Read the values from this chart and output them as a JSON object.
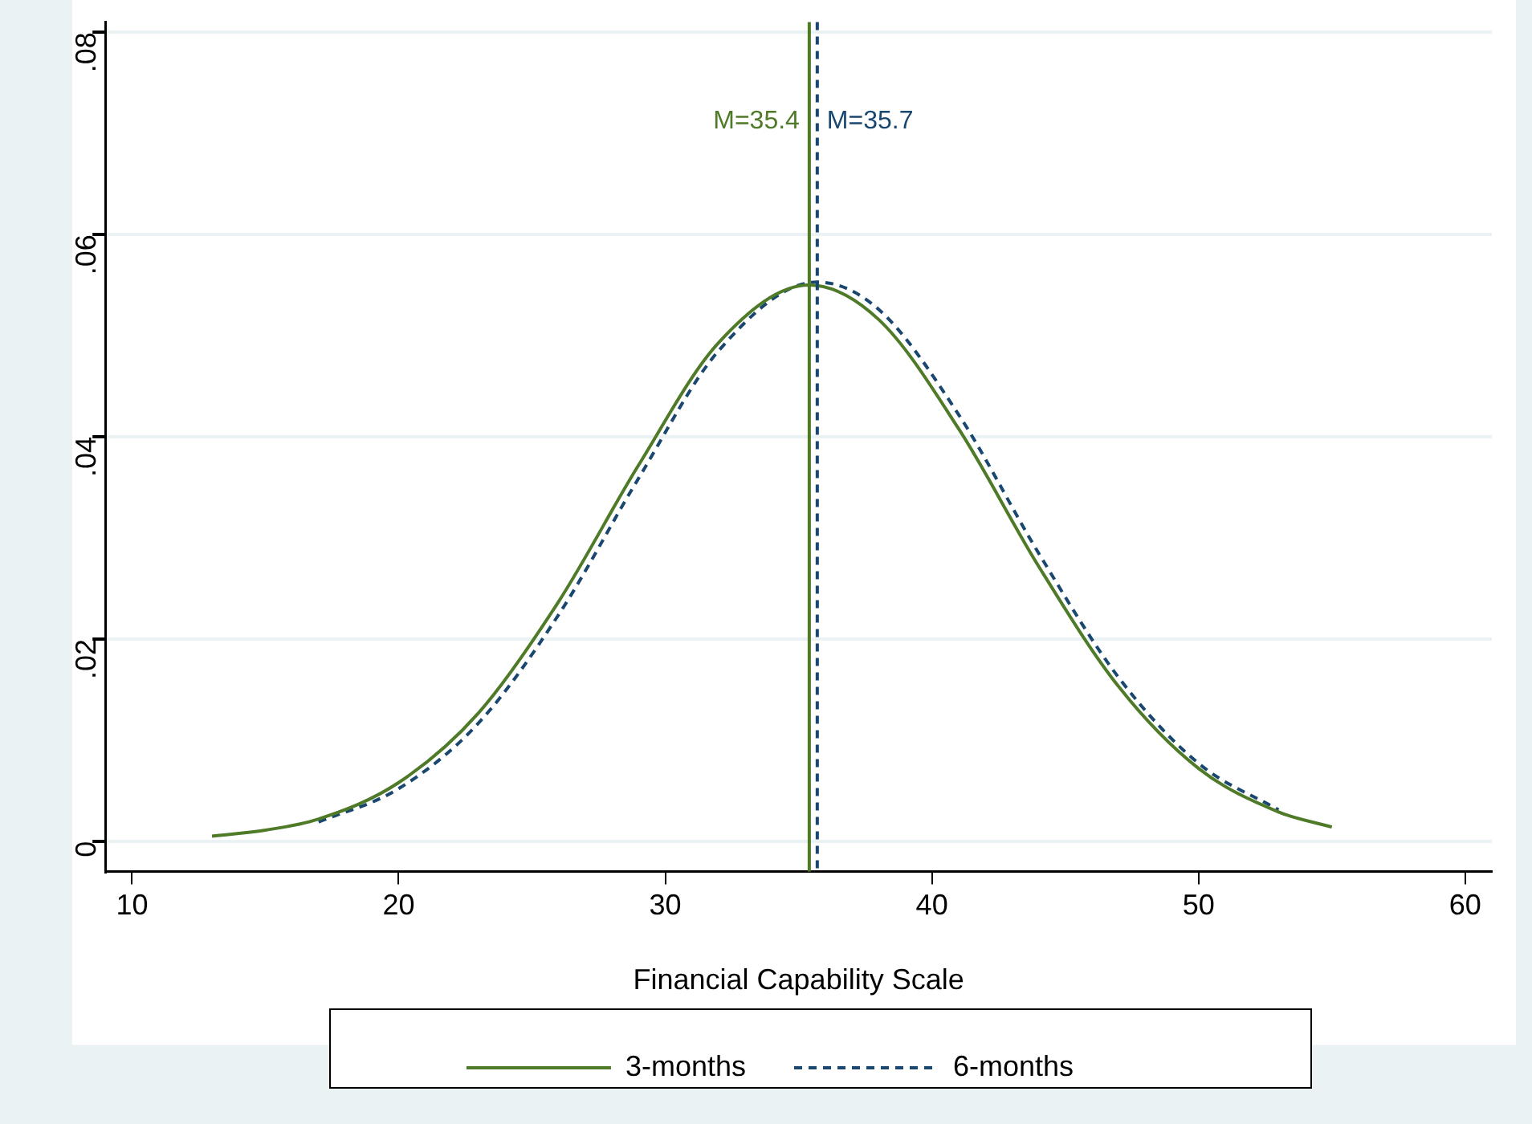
{
  "chart_data": {
    "type": "line",
    "xlabel": "Financial Capability Scale",
    "xlim": [
      9,
      61
    ],
    "xticks": [
      10,
      20,
      30,
      40,
      50,
      60
    ],
    "ylim": [
      -0.003,
      0.081
    ],
    "yticks": [
      0,
      {
        "value": 0.02,
        "label": ".02"
      },
      {
        "value": 0.04,
        "label": ".04"
      },
      {
        "value": 0.06,
        "label": ".06"
      },
      {
        "value": 0.08,
        "label": ".08"
      }
    ],
    "grid": "y",
    "legend": "bottom",
    "marker": "none",
    "series": [
      {
        "name": "3-months",
        "color": "#4f7a28",
        "line_style": "solid",
        "x": [
          13,
          15,
          17,
          20,
          23,
          26,
          29,
          32,
          35.4,
          38,
          41,
          44,
          47,
          50,
          53,
          55
        ],
        "values": [
          0.0005,
          0.0011,
          0.0022,
          0.0058,
          0.0127,
          0.0237,
          0.0372,
          0.0493,
          0.055,
          0.0516,
          0.0408,
          0.0272,
          0.0153,
          0.0072,
          0.0029,
          0.0014
        ]
      },
      {
        "name": "6-months",
        "color": "#1a476f",
        "line_style": "dashed",
        "x": [
          17,
          20,
          23,
          26,
          29,
          32,
          35.7,
          38,
          41,
          44,
          47,
          50,
          53
        ],
        "values": [
          0.0019,
          0.0052,
          0.0117,
          0.0224,
          0.0359,
          0.0485,
          0.0553,
          0.0526,
          0.0422,
          0.0285,
          0.0162,
          0.0077,
          0.0031
        ]
      }
    ],
    "ref_lines": [
      {
        "axis": "x",
        "value": 35.4,
        "label": "M=35.4",
        "color": "#4f7a28",
        "line_style": "solid"
      },
      {
        "axis": "x",
        "value": 35.7,
        "label": "M=35.7",
        "color": "#1a476f",
        "line_style": "dashed"
      }
    ]
  }
}
